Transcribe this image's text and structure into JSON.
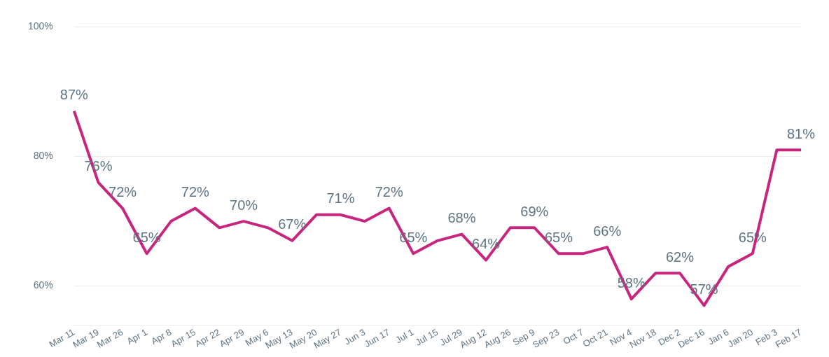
{
  "chart_data": {
    "type": "line",
    "categories": [
      "Mar 11",
      "Mar 19",
      "Mar 26",
      "Apr 1",
      "Apr 8",
      "Apr 15",
      "Apr 22",
      "Apr 29",
      "May 6",
      "May 13",
      "May 20",
      "May 27",
      "Jun 3",
      "Jun 17",
      "Jul 1",
      "Jul 15",
      "Jul 29",
      "Aug 12",
      "Aug 26",
      "Sep 9",
      "Sep 23",
      "Oct 7",
      "Oct 21",
      "Nov 4",
      "Nov 18",
      "Dec 2",
      "Dec 16",
      "Jan 6",
      "Jan 20",
      "Feb 3",
      "Feb 17"
    ],
    "series": [
      {
        "color": "#c8267e",
        "values": [
          87,
          76,
          72,
          65,
          70,
          72,
          69,
          70,
          69,
          67,
          71,
          71,
          70,
          72,
          65,
          67,
          68,
          64,
          69,
          69,
          65,
          65,
          66,
          58,
          62,
          62,
          57,
          63,
          65,
          81,
          81
        ],
        "value_labels": [
          "87%",
          "76%",
          "72%",
          "65%",
          null,
          "72%",
          null,
          "70%",
          null,
          "67%",
          null,
          "71%",
          null,
          "72%",
          "65%",
          null,
          "68%",
          "64%",
          null,
          "69%",
          "65%",
          null,
          "66%",
          "58%",
          null,
          "62%",
          "57%",
          null,
          "65%",
          null,
          "81%"
        ]
      }
    ],
    "ylim": [
      54,
      100
    ],
    "yticks": [
      {
        "value": 60,
        "label": "60%"
      },
      {
        "value": 80,
        "label": "80%"
      },
      {
        "value": 100,
        "label": "100%"
      }
    ],
    "grid": "y",
    "legend": false,
    "marker": "none",
    "line_style": "solid"
  }
}
